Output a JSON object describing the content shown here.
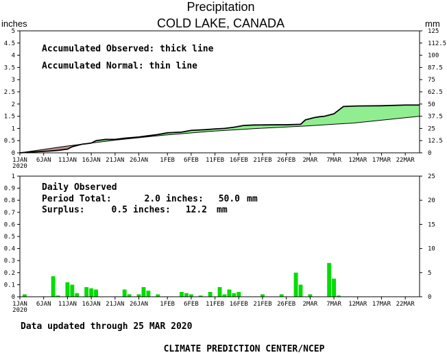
{
  "chart_data": [
    {
      "type": "area",
      "title": "Precipitation",
      "subtitle": "COLD LAKE, CANADA",
      "ylabel_left": "inches",
      "ylabel_right": "mm",
      "ylim": [
        0,
        5
      ],
      "ylim_right": [
        0,
        125
      ],
      "yticks_left": [
        "0",
        "0.5",
        "1",
        "1.5",
        "2",
        "2.5",
        "3",
        "3.5",
        "4",
        "4.5",
        "5"
      ],
      "yticks_right": [
        "0",
        "12.5",
        "25",
        "37.5",
        "50",
        "62.5",
        "75",
        "87.5",
        "100",
        "112.5",
        "125"
      ],
      "xticks": [
        "1JAN",
        "6JAN",
        "11JAN",
        "16JAN",
        "21JAN",
        "26JAN",
        "1FEB",
        "6FEB",
        "11FEB",
        "16FEB",
        "21FEB",
        "26FEB",
        "2MAR",
        "7MAR",
        "12MAR",
        "17MAR",
        "22MAR"
      ],
      "xtick_days": [
        1,
        6,
        11,
        16,
        21,
        26,
        32,
        37,
        42,
        47,
        52,
        57,
        62,
        67,
        72,
        77,
        82
      ],
      "year_label": "2020",
      "annotations": [
        "Accumulated Observed: thick line",
        "Accumulated Normal: thin line"
      ],
      "series": [
        {
          "role": "observed",
          "x": [
            1,
            3,
            5,
            7,
            9,
            11,
            12,
            14,
            16,
            17,
            19,
            21,
            23,
            26,
            28,
            30,
            32,
            35,
            37,
            40,
            42,
            44,
            46,
            48,
            50,
            55,
            57,
            60,
            61,
            62,
            63,
            64,
            65,
            66,
            67,
            68,
            69,
            72,
            77,
            82,
            85
          ],
          "values": [
            0.0,
            0.03,
            0.05,
            0.07,
            0.1,
            0.15,
            0.25,
            0.35,
            0.4,
            0.5,
            0.55,
            0.55,
            0.6,
            0.65,
            0.7,
            0.75,
            0.82,
            0.85,
            0.92,
            0.95,
            0.98,
            1.0,
            1.05,
            1.12,
            1.14,
            1.15,
            1.15,
            1.17,
            1.35,
            1.4,
            1.45,
            1.48,
            1.5,
            1.55,
            1.6,
            1.75,
            1.9,
            1.92,
            1.93,
            1.96,
            1.96
          ]
        },
        {
          "role": "normal",
          "x": [
            1,
            11,
            21,
            31,
            41,
            51,
            61,
            71,
            85
          ],
          "values": [
            0.0,
            0.28,
            0.52,
            0.72,
            0.88,
            1.0,
            1.1,
            1.22,
            1.5
          ]
        }
      ],
      "fill_above_color": "#90ee90",
      "fill_below_color": "#bc8f8f"
    },
    {
      "type": "bar",
      "ylim": [
        0,
        1
      ],
      "ylim_right": [
        0,
        25
      ],
      "yticks_left": [
        "0",
        "0.1",
        "0.2",
        "0.3",
        "0.4",
        "0.5",
        "0.6",
        "0.7",
        "0.8",
        "0.9",
        "1"
      ],
      "yticks_right": [
        "0",
        "5",
        "10",
        "15",
        "20",
        "25"
      ],
      "xticks": [
        "1JAN",
        "6JAN",
        "11JAN",
        "16JAN",
        "21JAN",
        "26JAN",
        "1FEB",
        "6FEB",
        "11FEB",
        "16FEB",
        "21FEB",
        "26FEB",
        "2MAR",
        "7MAR",
        "12MAR",
        "17MAR",
        "22MAR"
      ],
      "xtick_days": [
        1,
        6,
        11,
        16,
        21,
        26,
        32,
        37,
        42,
        47,
        52,
        57,
        62,
        67,
        72,
        77,
        82
      ],
      "year_label": "2020",
      "annotation_title": "Daily Observed",
      "period_total_label": "Period Total:",
      "period_total_inches": "2.0",
      "period_total_mm": "50.0",
      "surplus_label": "Surplus:",
      "surplus_inches": "0.5",
      "surplus_mm": "12.2",
      "unit_inches": "inches:",
      "unit_mm": "mm",
      "bar_color": "#00dd00",
      "days": [
        2,
        8,
        9,
        11,
        12,
        13,
        15,
        16,
        17,
        23,
        24,
        26,
        27,
        28,
        30,
        35,
        36,
        37,
        39,
        41,
        43,
        44,
        45,
        46,
        47,
        52,
        56,
        59,
        60,
        62,
        66,
        67,
        68
      ],
      "values": [
        0.02,
        0.17,
        0.01,
        0.12,
        0.1,
        0.03,
        0.08,
        0.07,
        0.06,
        0.06,
        0.02,
        0.02,
        0.08,
        0.05,
        0.02,
        0.04,
        0.03,
        0.02,
        0.01,
        0.04,
        0.08,
        0.02,
        0.06,
        0.03,
        0.04,
        0.02,
        0.02,
        0.2,
        0.1,
        0.02,
        0.28,
        0.15,
        0.01
      ]
    }
  ],
  "footer": {
    "updated_text": "Data updated through 25 MAR 2020",
    "credit": "CLIMATE PREDICTION CENTER/NCEP"
  }
}
